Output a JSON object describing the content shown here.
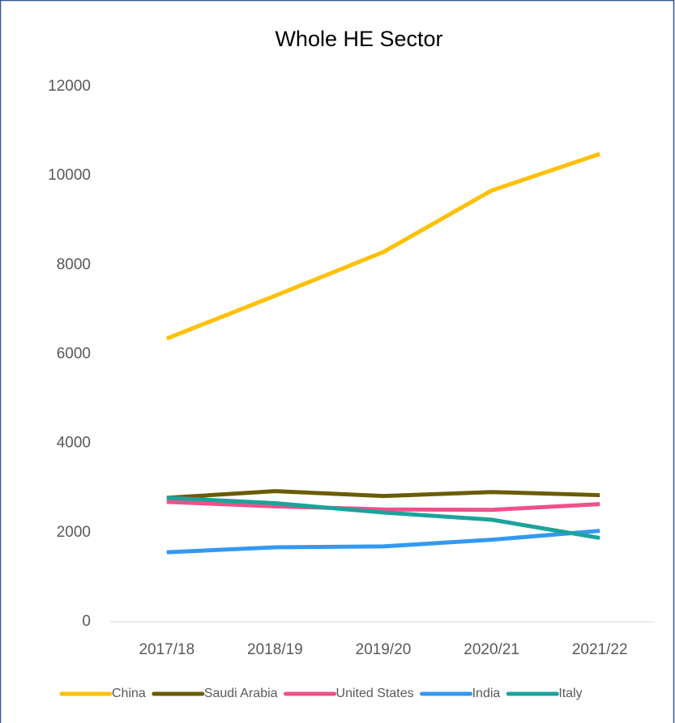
{
  "chart_data": {
    "type": "line",
    "title": "Whole HE Sector",
    "categories": [
      "2017/18",
      "2018/19",
      "2019/20",
      "2020/21",
      "2021/22"
    ],
    "series": [
      {
        "name": "China",
        "color": "#FFC000",
        "values": [
          6350,
          7310,
          8290,
          9670,
          10490
        ]
      },
      {
        "name": "Saudi Arabia",
        "color": "#6B5B00",
        "values": [
          2780,
          2930,
          2820,
          2910,
          2840
        ]
      },
      {
        "name": "United States",
        "color": "#F0508A",
        "values": [
          2690,
          2590,
          2520,
          2510,
          2640
        ]
      },
      {
        "name": "India",
        "color": "#3399F0",
        "values": [
          1560,
          1670,
          1690,
          1840,
          2040
        ]
      },
      {
        "name": "Italy",
        "color": "#1BA39C",
        "values": [
          2780,
          2660,
          2450,
          2290,
          1880
        ]
      }
    ],
    "ylim": [
      0,
      12000
    ],
    "yticks": [
      0,
      2000,
      4000,
      6000,
      8000,
      10000,
      12000
    ],
    "grid": false,
    "legend": "bottom"
  }
}
